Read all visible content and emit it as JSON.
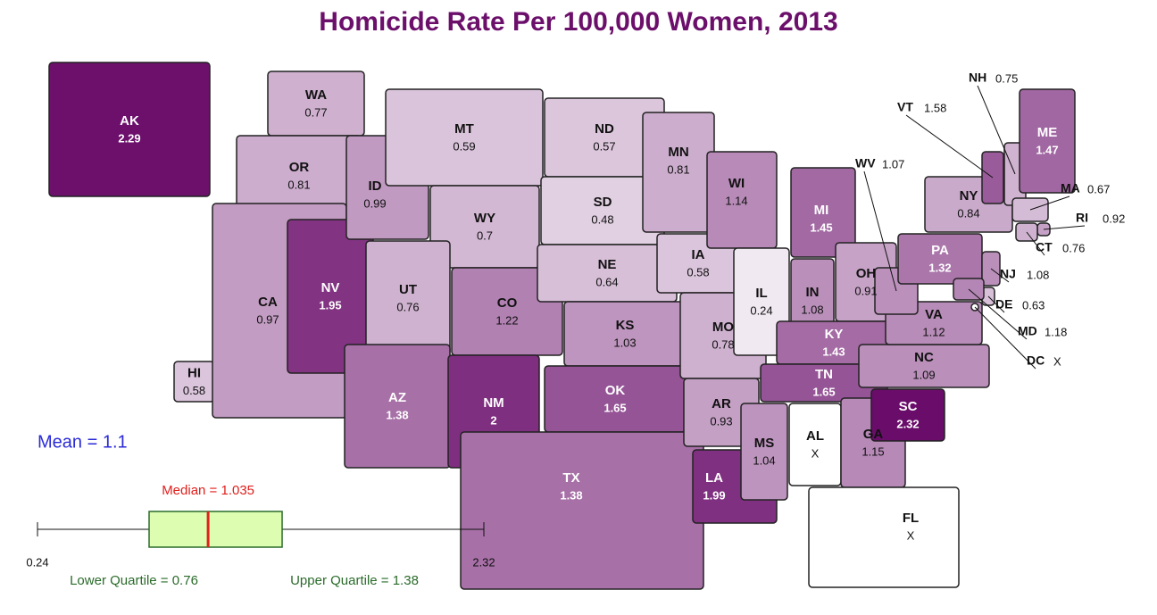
{
  "chart_data": {
    "type": "choropleth",
    "title": "Homicide Rate Per 100,000 Women, 2013",
    "color_low": "#f1e9f2",
    "color_high": "#6a0d6a",
    "color_missing": "#ffffff",
    "states": [
      {
        "abbr": "AK",
        "value": 2.29
      },
      {
        "abbr": "HI",
        "value": 0.58
      },
      {
        "abbr": "WA",
        "value": 0.77
      },
      {
        "abbr": "OR",
        "value": 0.81
      },
      {
        "abbr": "CA",
        "value": 0.97
      },
      {
        "abbr": "NV",
        "value": 1.95
      },
      {
        "abbr": "ID",
        "value": 0.99
      },
      {
        "abbr": "MT",
        "value": 0.59
      },
      {
        "abbr": "WY",
        "value": 0.7
      },
      {
        "abbr": "UT",
        "value": 0.76
      },
      {
        "abbr": "AZ",
        "value": 1.38
      },
      {
        "abbr": "CO",
        "value": 1.22
      },
      {
        "abbr": "NM",
        "value": 2
      },
      {
        "abbr": "ND",
        "value": 0.57
      },
      {
        "abbr": "SD",
        "value": 0.48
      },
      {
        "abbr": "NE",
        "value": 0.64
      },
      {
        "abbr": "KS",
        "value": 1.03
      },
      {
        "abbr": "OK",
        "value": 1.65
      },
      {
        "abbr": "TX",
        "value": 1.38
      },
      {
        "abbr": "MN",
        "value": 0.81
      },
      {
        "abbr": "IA",
        "value": 0.58
      },
      {
        "abbr": "MO",
        "value": 0.78
      },
      {
        "abbr": "AR",
        "value": 0.93
      },
      {
        "abbr": "LA",
        "value": 1.99
      },
      {
        "abbr": "WI",
        "value": 1.14
      },
      {
        "abbr": "IL",
        "value": 0.24
      },
      {
        "abbr": "MI",
        "value": 1.45
      },
      {
        "abbr": "IN",
        "value": 1.08
      },
      {
        "abbr": "OH",
        "value": 0.91
      },
      {
        "abbr": "KY",
        "value": 1.43
      },
      {
        "abbr": "TN",
        "value": 1.65
      },
      {
        "abbr": "MS",
        "value": 1.04
      },
      {
        "abbr": "AL",
        "value": null,
        "label": "X"
      },
      {
        "abbr": "GA",
        "value": 1.15
      },
      {
        "abbr": "FL",
        "value": null,
        "label": "X"
      },
      {
        "abbr": "SC",
        "value": 2.32
      },
      {
        "abbr": "NC",
        "value": 1.09
      },
      {
        "abbr": "VA",
        "value": 1.12
      },
      {
        "abbr": "WV",
        "value": 1.07
      },
      {
        "abbr": "PA",
        "value": 1.32
      },
      {
        "abbr": "NY",
        "value": 0.84
      },
      {
        "abbr": "VT",
        "value": 1.58
      },
      {
        "abbr": "NH",
        "value": 0.75
      },
      {
        "abbr": "ME",
        "value": 1.47
      },
      {
        "abbr": "MA",
        "value": 0.67
      },
      {
        "abbr": "RI",
        "value": 0.92
      },
      {
        "abbr": "CT",
        "value": 0.76
      },
      {
        "abbr": "NJ",
        "value": 1.08
      },
      {
        "abbr": "DE",
        "value": 0.63
      },
      {
        "abbr": "MD",
        "value": 1.18
      },
      {
        "abbr": "DC",
        "value": null,
        "label": "X"
      }
    ],
    "mean_label": "Mean = 1.1",
    "boxplot": {
      "min": 0.24,
      "q1": 0.76,
      "median": 1.035,
      "q3": 1.38,
      "max": 2.32,
      "median_label": "Median = 1.035",
      "q1_label": "Lower Quartile = 0.76",
      "q3_label": "Upper Quartile = 1.38"
    }
  }
}
